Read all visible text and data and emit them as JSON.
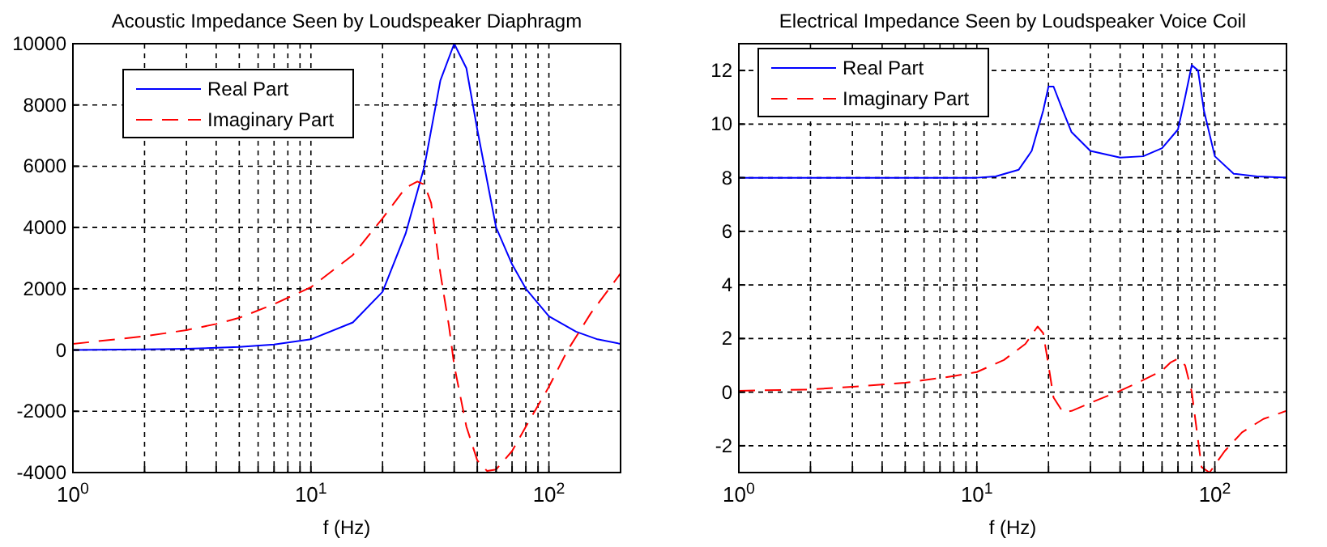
{
  "chart_data": [
    {
      "type": "line",
      "title": "Acoustic Impedance Seen by Loudspeaker Diaphragm",
      "xlabel": "f (Hz)",
      "log": "x",
      "xlim": [
        1,
        200
      ],
      "ylim": [
        -4000,
        10000
      ],
      "xticks": [
        {
          "value": 1,
          "label": "10$^{0}$"
        },
        {
          "value": 2,
          "label": null
        },
        {
          "value": 3,
          "label": null
        },
        {
          "value": 4,
          "label": null
        },
        {
          "value": 5,
          "label": null
        },
        {
          "value": 6,
          "label": null
        },
        {
          "value": 7,
          "label": null
        },
        {
          "value": 8,
          "label": null
        },
        {
          "value": 9,
          "label": null
        },
        {
          "value": 10,
          "label": "10$^{1}$"
        },
        {
          "value": 20,
          "label": null
        },
        {
          "value": 30,
          "label": null
        },
        {
          "value": 40,
          "label": null
        },
        {
          "value": 50,
          "label": null
        },
        {
          "value": 60,
          "label": null
        },
        {
          "value": 70,
          "label": null
        },
        {
          "value": 80,
          "label": null
        },
        {
          "value": 90,
          "label": null
        },
        {
          "value": 100,
          "label": "10$^{2}$"
        }
      ],
      "yticks": [
        -4000,
        -2000,
        0,
        2000,
        4000,
        6000,
        8000,
        10000
      ],
      "grid": true,
      "legend": "top left",
      "series": [
        {
          "name": "Real Part",
          "color": "#0000ff",
          "line_style": "solid",
          "x": [
            1,
            2,
            3,
            5,
            7,
            10,
            15,
            20,
            25,
            30,
            35,
            40,
            45,
            50,
            60,
            70,
            80,
            100,
            130,
            160,
            200
          ],
          "values": [
            0,
            20,
            40,
            100,
            180,
            350,
            900,
            1900,
            3800,
            6000,
            8800,
            10000,
            9200,
            7200,
            4000,
            2800,
            2000,
            1100,
            600,
            350,
            200
          ]
        },
        {
          "name": "Imaginary Part",
          "color": "#ff0000",
          "line_style": "dashed",
          "x": [
            1,
            2,
            3,
            4,
            5,
            7,
            10,
            15,
            20,
            25,
            28,
            30,
            32,
            35,
            38,
            40,
            45,
            50,
            55,
            60,
            70,
            80,
            100,
            120,
            150,
            200
          ],
          "values": [
            200,
            450,
            650,
            850,
            1050,
            1500,
            2050,
            3100,
            4300,
            5300,
            5500,
            5400,
            4800,
            2500,
            800,
            -500,
            -2500,
            -3600,
            -3950,
            -3900,
            -3300,
            -2500,
            -1200,
            0,
            1200,
            2500
          ]
        }
      ]
    },
    {
      "type": "line",
      "title": "Electrical Impedance Seen by Loudspeaker Voice Coil",
      "xlabel": "f (Hz)",
      "log": "x",
      "xlim": [
        1,
        200
      ],
      "ylim": [
        -3,
        13
      ],
      "xticks": [
        {
          "value": 1,
          "label": "10$^{0}$"
        },
        {
          "value": 2,
          "label": null
        },
        {
          "value": 3,
          "label": null
        },
        {
          "value": 4,
          "label": null
        },
        {
          "value": 5,
          "label": null
        },
        {
          "value": 6,
          "label": null
        },
        {
          "value": 7,
          "label": null
        },
        {
          "value": 8,
          "label": null
        },
        {
          "value": 9,
          "label": null
        },
        {
          "value": 10,
          "label": "10$^{1}$"
        },
        {
          "value": 20,
          "label": null
        },
        {
          "value": 30,
          "label": null
        },
        {
          "value": 40,
          "label": null
        },
        {
          "value": 50,
          "label": null
        },
        {
          "value": 60,
          "label": null
        },
        {
          "value": 70,
          "label": null
        },
        {
          "value": 80,
          "label": null
        },
        {
          "value": 90,
          "label": null
        },
        {
          "value": 100,
          "label": "10$^{2}$"
        }
      ],
      "yticks": [
        -2,
        0,
        2,
        4,
        6,
        8,
        10,
        12
      ],
      "grid": true,
      "legend": "top left",
      "series": [
        {
          "name": "Real Part",
          "color": "#0000ff",
          "line_style": "solid",
          "x": [
            1,
            5,
            10,
            12,
            15,
            17,
            19,
            20,
            21,
            23,
            25,
            30,
            40,
            50,
            60,
            70,
            75,
            80,
            85,
            90,
            100,
            120,
            150,
            200
          ],
          "values": [
            8,
            8,
            8,
            8.05,
            8.3,
            9,
            10.5,
            11.4,
            11.4,
            10.5,
            9.7,
            9,
            8.75,
            8.8,
            9.1,
            9.8,
            11,
            12.2,
            12,
            10.5,
            8.8,
            8.15,
            8.05,
            8
          ]
        },
        {
          "name": "Imaginary Part",
          "color": "#ff0000",
          "line_style": "dashed",
          "x": [
            1,
            2,
            3,
            5,
            8,
            10,
            13,
            16,
            18,
            19,
            20,
            21,
            23,
            25,
            30,
            40,
            50,
            60,
            65,
            70,
            75,
            80,
            85,
            88,
            95,
            110,
            130,
            160,
            200
          ],
          "values": [
            0.05,
            0.1,
            0.2,
            0.35,
            0.6,
            0.75,
            1.2,
            1.8,
            2.45,
            2.2,
            1,
            -0.2,
            -0.75,
            -0.7,
            -0.4,
            0.05,
            0.45,
            0.8,
            1.1,
            1.25,
            1,
            0,
            -1.8,
            -2.8,
            -3,
            -2.2,
            -1.5,
            -1,
            -0.7
          ]
        }
      ]
    }
  ]
}
